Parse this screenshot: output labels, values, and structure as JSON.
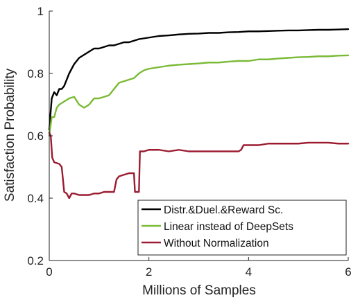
{
  "chart_data": {
    "type": "line",
    "title": "",
    "xlabel": "Millions of Samples",
    "ylabel": "Satisfaction Probability",
    "xlim": [
      0,
      6
    ],
    "ylim": [
      0.2,
      1.0
    ],
    "xticks": [
      0,
      2,
      4,
      6
    ],
    "yticks": [
      0.2,
      0.4,
      0.6,
      0.8,
      1.0
    ],
    "xtick_labels": [
      "0",
      "2",
      "4",
      "6"
    ],
    "ytick_labels": [
      "0.2",
      "0.4",
      "0.6",
      "0.8",
      "1"
    ],
    "grid": false,
    "legend_position": "bottom-right",
    "series": [
      {
        "name": "Distr.&Duel.&Reward Sc.",
        "color": "#000000",
        "x": [
          0.0,
          0.05,
          0.1,
          0.15,
          0.2,
          0.25,
          0.3,
          0.35,
          0.4,
          0.5,
          0.6,
          0.7,
          0.8,
          0.9,
          1.0,
          1.1,
          1.2,
          1.3,
          1.4,
          1.5,
          1.6,
          1.7,
          1.8,
          2.0,
          2.2,
          2.4,
          2.6,
          2.8,
          3.0,
          3.2,
          3.4,
          3.6,
          3.8,
          4.0,
          4.2,
          4.4,
          4.6,
          4.8,
          5.0,
          5.2,
          5.4,
          5.6,
          5.8,
          6.0
        ],
        "values": [
          0.62,
          0.72,
          0.74,
          0.73,
          0.75,
          0.75,
          0.76,
          0.78,
          0.8,
          0.83,
          0.85,
          0.86,
          0.87,
          0.88,
          0.88,
          0.885,
          0.89,
          0.89,
          0.895,
          0.9,
          0.9,
          0.905,
          0.91,
          0.915,
          0.92,
          0.922,
          0.925,
          0.927,
          0.928,
          0.93,
          0.93,
          0.932,
          0.933,
          0.935,
          0.935,
          0.936,
          0.937,
          0.938,
          0.938,
          0.939,
          0.94,
          0.94,
          0.941,
          0.942
        ]
      },
      {
        "name": "Linear instead of DeepSets",
        "color": "#7aba35",
        "x": [
          0.0,
          0.05,
          0.1,
          0.15,
          0.2,
          0.3,
          0.4,
          0.5,
          0.6,
          0.7,
          0.8,
          0.9,
          1.0,
          1.1,
          1.2,
          1.3,
          1.4,
          1.5,
          1.6,
          1.7,
          1.8,
          1.9,
          2.0,
          2.2,
          2.4,
          2.6,
          2.8,
          3.0,
          3.2,
          3.4,
          3.6,
          3.8,
          4.0,
          4.2,
          4.4,
          4.6,
          4.8,
          5.0,
          5.2,
          5.4,
          5.6,
          5.8,
          6.0
        ],
        "values": [
          0.6,
          0.66,
          0.66,
          0.69,
          0.7,
          0.71,
          0.72,
          0.725,
          0.7,
          0.69,
          0.7,
          0.72,
          0.72,
          0.725,
          0.73,
          0.75,
          0.77,
          0.775,
          0.78,
          0.785,
          0.8,
          0.81,
          0.815,
          0.82,
          0.825,
          0.828,
          0.83,
          0.832,
          0.835,
          0.835,
          0.838,
          0.84,
          0.84,
          0.845,
          0.845,
          0.848,
          0.85,
          0.852,
          0.853,
          0.855,
          0.855,
          0.857,
          0.858
        ]
      },
      {
        "name": "Without Normalization",
        "color": "#9b1b30",
        "x": [
          0.0,
          0.03,
          0.06,
          0.1,
          0.2,
          0.25,
          0.3,
          0.35,
          0.4,
          0.45,
          0.5,
          0.6,
          0.7,
          0.8,
          0.9,
          1.0,
          1.1,
          1.2,
          1.3,
          1.35,
          1.4,
          1.5,
          1.6,
          1.7,
          1.72,
          1.75,
          1.8,
          1.82,
          1.85,
          1.9,
          2.0,
          2.2,
          2.4,
          2.6,
          2.8,
          3.0,
          3.2,
          3.4,
          3.6,
          3.8,
          3.85,
          3.9,
          4.0,
          4.2,
          4.4,
          4.6,
          4.8,
          5.0,
          5.2,
          5.4,
          5.6,
          5.8,
          6.0
        ],
        "values": [
          0.61,
          0.6,
          0.53,
          0.515,
          0.51,
          0.5,
          0.42,
          0.415,
          0.4,
          0.415,
          0.415,
          0.41,
          0.41,
          0.41,
          0.415,
          0.415,
          0.42,
          0.42,
          0.42,
          0.46,
          0.47,
          0.475,
          0.48,
          0.48,
          0.42,
          0.42,
          0.42,
          0.55,
          0.55,
          0.55,
          0.555,
          0.555,
          0.55,
          0.555,
          0.55,
          0.55,
          0.55,
          0.55,
          0.55,
          0.55,
          0.555,
          0.57,
          0.57,
          0.57,
          0.575,
          0.575,
          0.575,
          0.575,
          0.578,
          0.578,
          0.578,
          0.575,
          0.575
        ]
      }
    ]
  }
}
